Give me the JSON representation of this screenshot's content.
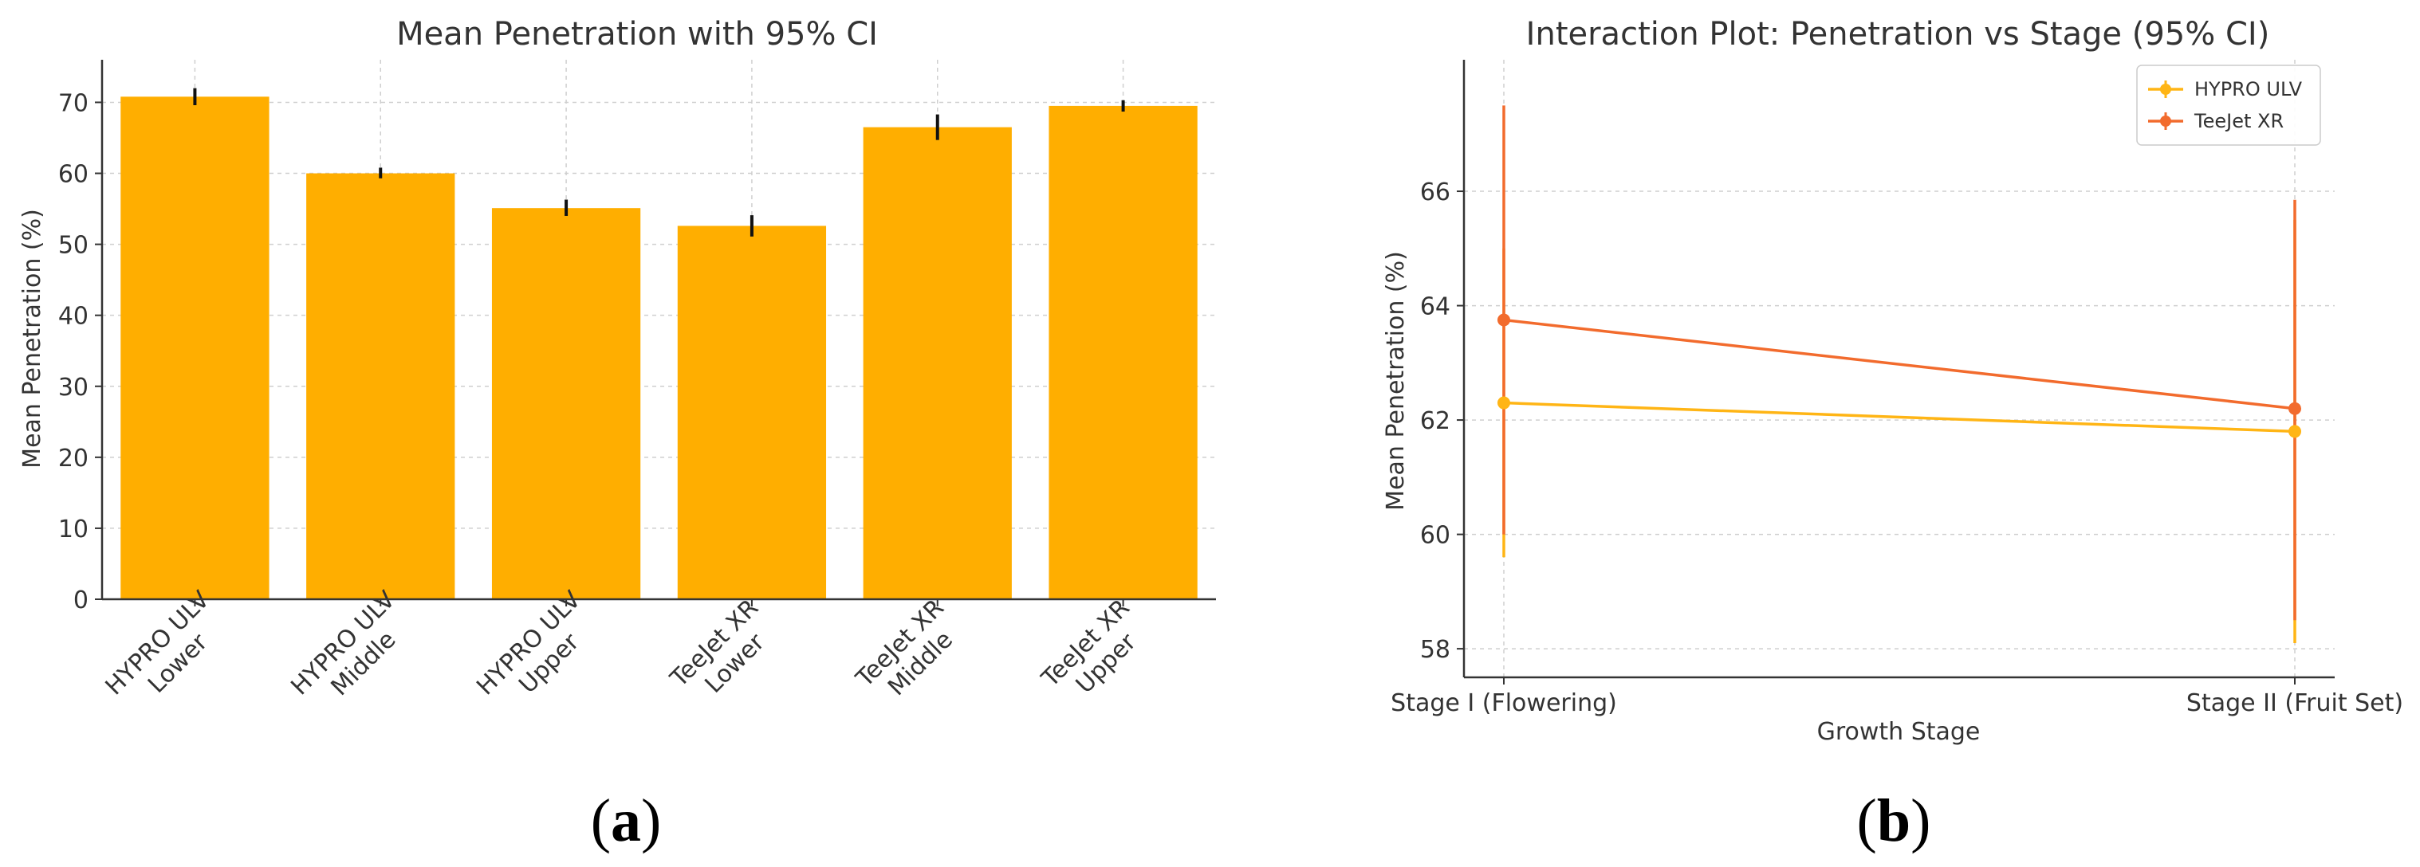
{
  "panels": {
    "a": {
      "label_open": "(",
      "label_letter": "a",
      "label_close": ")"
    },
    "b": {
      "label_open": "(",
      "label_letter": "b",
      "label_close": ")"
    }
  },
  "chart_data": [
    {
      "type": "bar",
      "title": "Mean Penetration with 95% CI",
      "xlabel": "",
      "ylabel": "Mean Penetration (%)",
      "ylim": [
        0,
        76
      ],
      "yticks": [
        0,
        10,
        20,
        30,
        40,
        50,
        60,
        70
      ],
      "grid": true,
      "categories": [
        [
          "HYPRO ULV",
          "Lower"
        ],
        [
          "HYPRO ULV",
          "Middle"
        ],
        [
          "HYPRO ULV",
          "Upper"
        ],
        [
          "TeeJet XR",
          "Lower"
        ],
        [
          "TeeJet XR",
          "Middle"
        ],
        [
          "TeeJet XR",
          "Upper"
        ]
      ],
      "values": [
        70.8,
        60.0,
        55.1,
        52.6,
        66.5,
        69.5
      ],
      "ci": [
        [
          69.6,
          72.0
        ],
        [
          59.3,
          60.8
        ],
        [
          54.0,
          56.3
        ],
        [
          51.1,
          54.1
        ],
        [
          64.7,
          68.3
        ],
        [
          68.7,
          70.3
        ]
      ],
      "color": "#ffae00"
    },
    {
      "type": "line",
      "title": "Interaction Plot: Penetration vs Stage (95% CI)",
      "xlabel": "Growth Stage",
      "ylabel": "Mean Penetration (%)",
      "x": [
        "Stage I (Flowering)",
        "Stage II (Fruit Set)"
      ],
      "ylim": [
        57.5,
        68.3
      ],
      "yticks": [
        58,
        60,
        62,
        64,
        66
      ],
      "grid": true,
      "legend_position": "top-right",
      "series": [
        {
          "name": "HYPRO ULV",
          "color": "#ffb515",
          "values": [
            62.3,
            61.8
          ],
          "ci": [
            [
              59.6,
              65.0
            ],
            [
              58.1,
              65.5
            ]
          ]
        },
        {
          "name": "TeeJet XR",
          "color": "#f26b2d",
          "values": [
            63.75,
            62.2
          ],
          "ci": [
            [
              60.0,
              67.5
            ],
            [
              58.5,
              65.85
            ]
          ]
        }
      ]
    }
  ]
}
